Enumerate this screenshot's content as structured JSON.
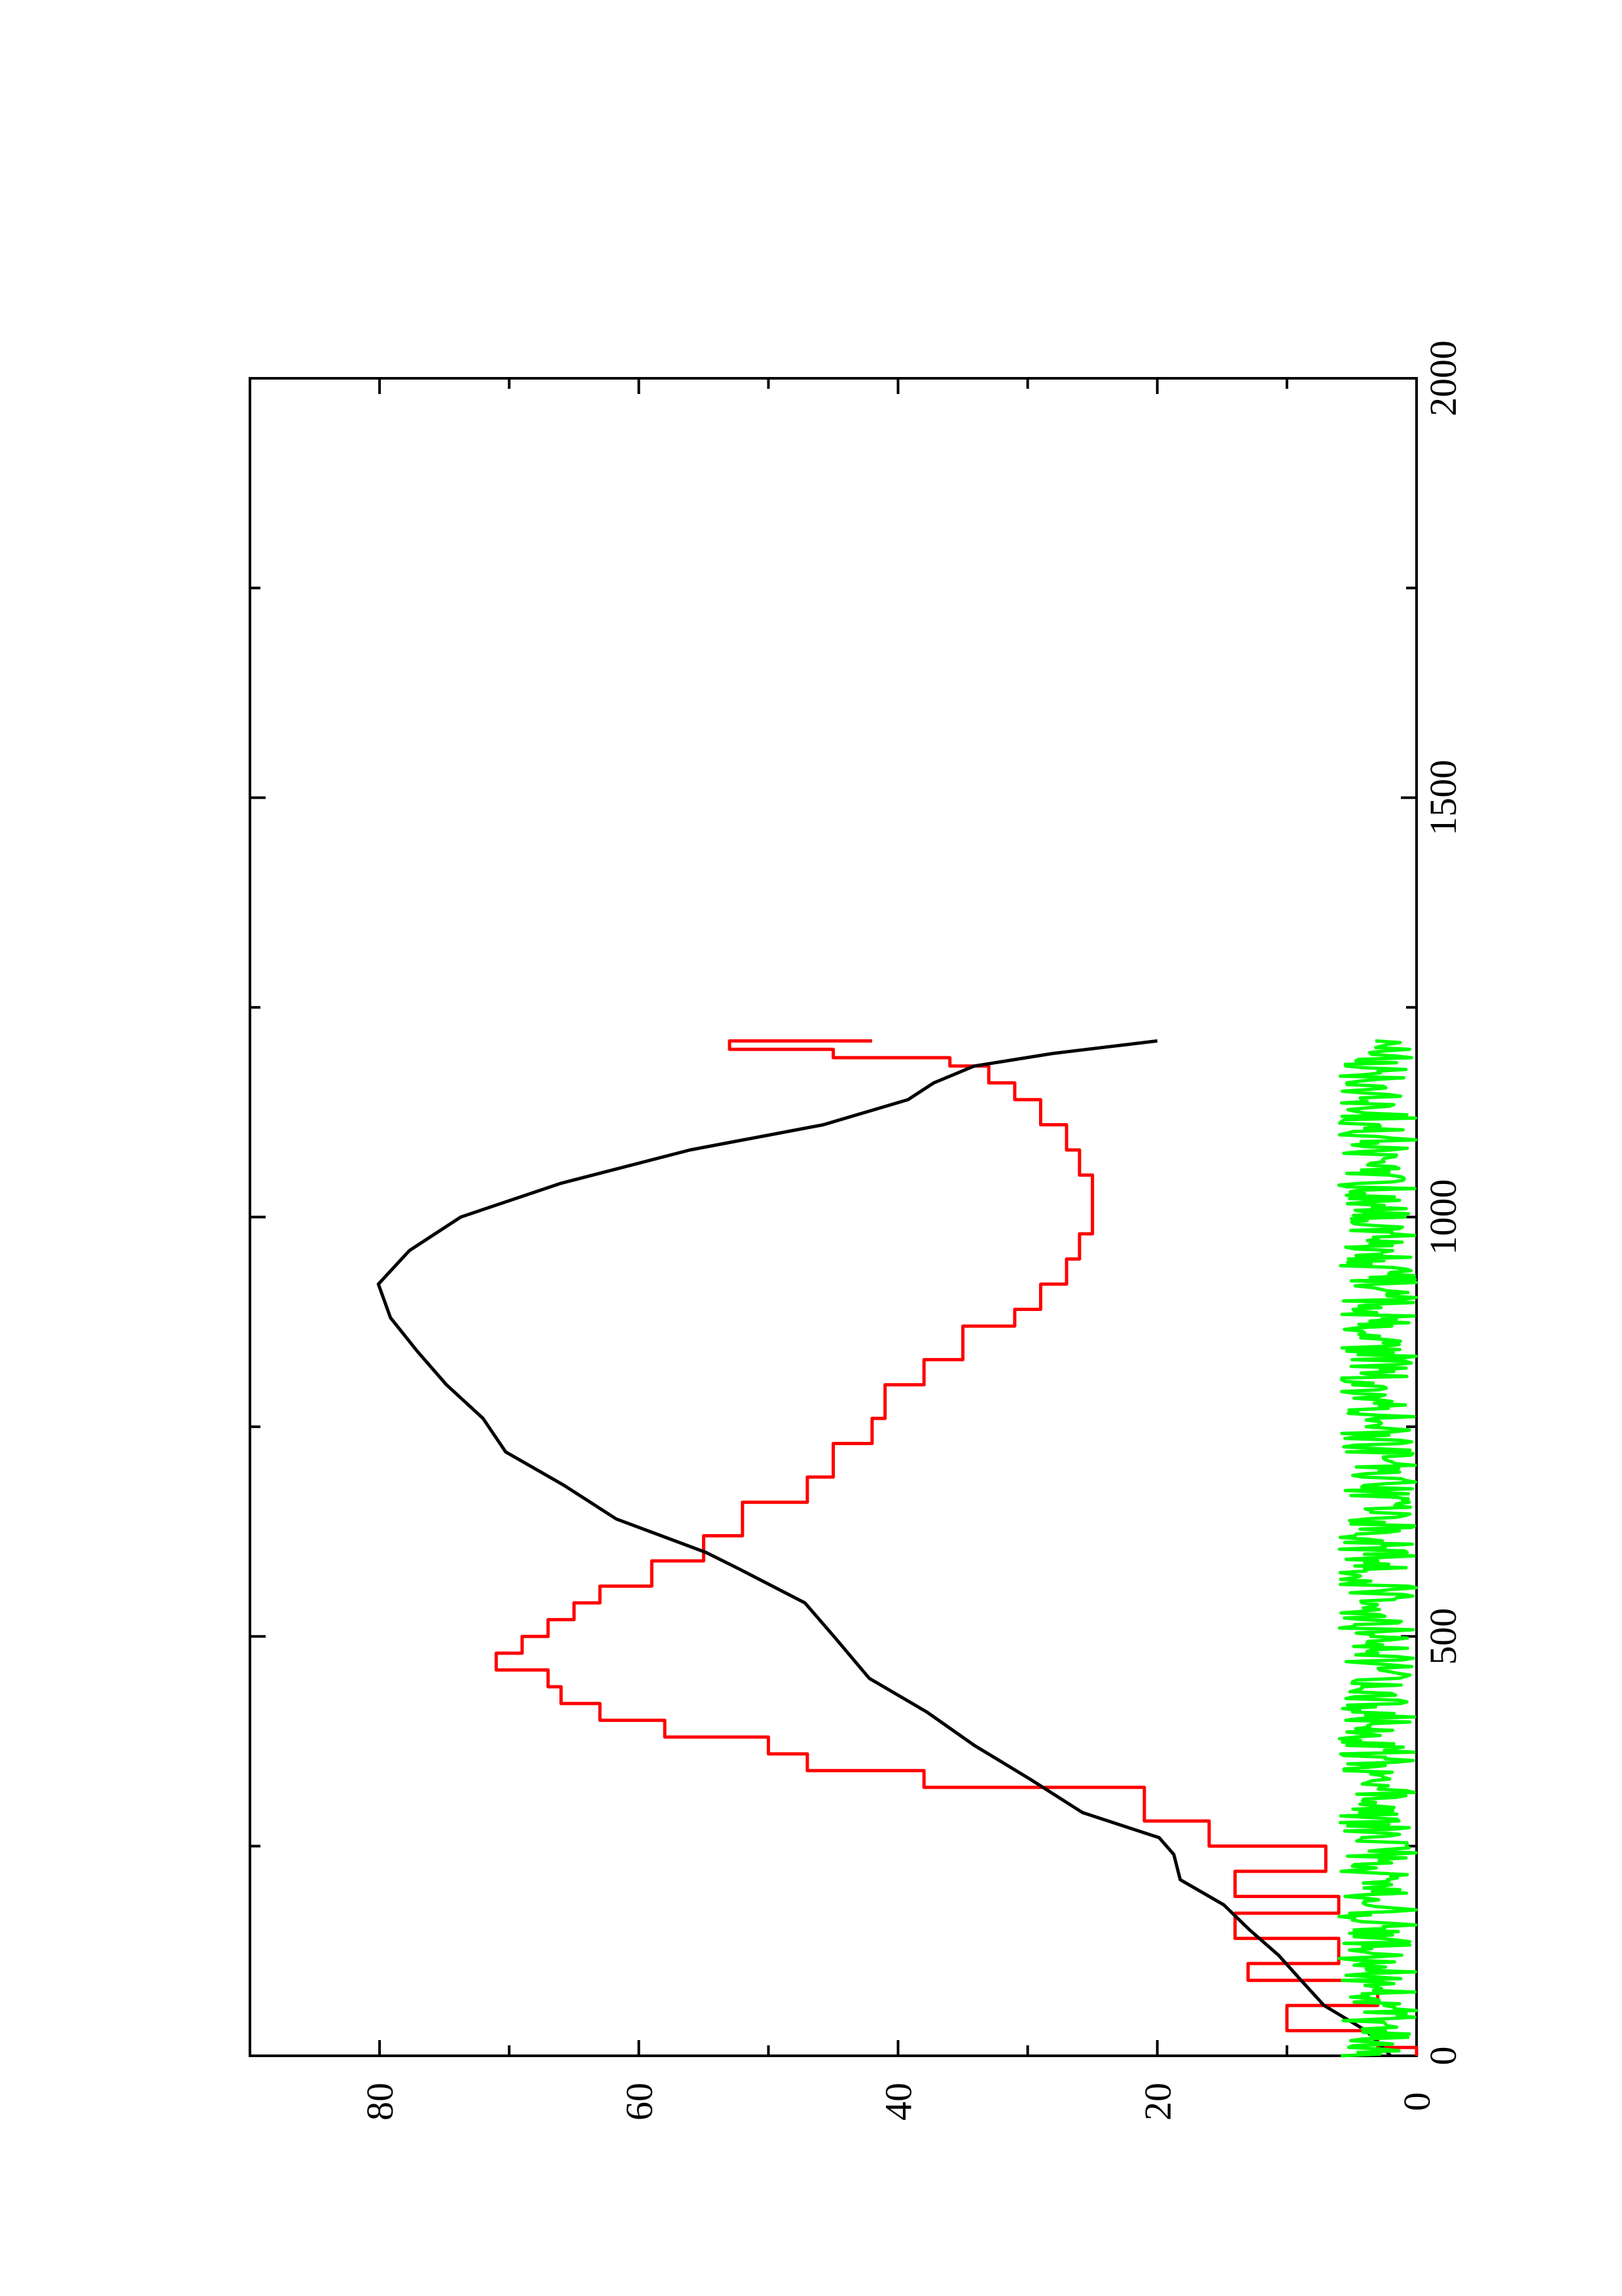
{
  "chart_data": {
    "type": "line",
    "orientation": "rotated-90-clockwise",
    "title": "",
    "xlabel": "",
    "ylabel": "",
    "xlim": [
      0,
      2000
    ],
    "ylim": [
      0,
      90
    ],
    "x_ticks": [
      0,
      500,
      1000,
      1500,
      2000
    ],
    "x_tick_labels": [
      "0",
      "500",
      "1000",
      "1500",
      "2000"
    ],
    "x_minor_ticks": [
      250,
      750,
      1250,
      1750
    ],
    "y_ticks": [
      0,
      20,
      40,
      60,
      80
    ],
    "y_tick_labels": [
      "0",
      "20",
      "40",
      "60",
      "80"
    ],
    "y_minor_ticks": [
      10,
      30,
      50,
      70,
      90
    ],
    "grid": false,
    "legend": "none",
    "series": [
      {
        "color": "#ff0000",
        "step": true,
        "points": [
          [
            0,
            0
          ],
          [
            10,
            3
          ],
          [
            30,
            10
          ],
          [
            60,
            3
          ],
          [
            90,
            13
          ],
          [
            110,
            6
          ],
          [
            140,
            14
          ],
          [
            170,
            6
          ],
          [
            190,
            14
          ],
          [
            220,
            7
          ],
          [
            250,
            16
          ],
          [
            280,
            21
          ],
          [
            320,
            38
          ],
          [
            340,
            47
          ],
          [
            360,
            50
          ],
          [
            380,
            58
          ],
          [
            400,
            63
          ],
          [
            420,
            66
          ],
          [
            440,
            67
          ],
          [
            460,
            71
          ],
          [
            480,
            69
          ],
          [
            500,
            67
          ],
          [
            520,
            65
          ],
          [
            540,
            63
          ],
          [
            560,
            59
          ],
          [
            590,
            55
          ],
          [
            620,
            52
          ],
          [
            660,
            47
          ],
          [
            690,
            45
          ],
          [
            730,
            42
          ],
          [
            760,
            41
          ],
          [
            800,
            38
          ],
          [
            830,
            35
          ],
          [
            870,
            31
          ],
          [
            890,
            29
          ],
          [
            920,
            27
          ],
          [
            950,
            26
          ],
          [
            980,
            25
          ],
          [
            1020,
            25
          ],
          [
            1050,
            26
          ],
          [
            1080,
            27
          ],
          [
            1110,
            29
          ],
          [
            1140,
            31
          ],
          [
            1160,
            33
          ],
          [
            1180,
            36
          ],
          [
            1190,
            45
          ],
          [
            1200,
            53
          ],
          [
            1210,
            42
          ]
        ]
      },
      {
        "color": "#000000",
        "step": false,
        "points": [
          [
            0,
            2
          ],
          [
            30,
            4
          ],
          [
            60,
            7
          ],
          [
            90,
            9
          ],
          [
            120,
            11
          ],
          [
            150,
            13
          ],
          [
            180,
            15
          ],
          [
            210,
            18
          ],
          [
            240,
            19
          ],
          [
            260,
            20
          ],
          [
            290,
            26
          ],
          [
            330,
            30
          ],
          [
            370,
            34
          ],
          [
            410,
            38
          ],
          [
            450,
            42
          ],
          [
            500,
            45
          ],
          [
            540,
            47
          ],
          [
            580,
            52
          ],
          [
            600,
            55
          ],
          [
            640,
            62
          ],
          [
            680,
            66
          ],
          [
            720,
            70
          ],
          [
            760,
            72
          ],
          [
            800,
            75
          ],
          [
            840,
            77
          ],
          [
            880,
            79
          ],
          [
            920,
            80
          ],
          [
            960,
            78
          ],
          [
            1000,
            74
          ],
          [
            1040,
            66
          ],
          [
            1080,
            56
          ],
          [
            1110,
            46
          ],
          [
            1140,
            39
          ],
          [
            1160,
            37
          ],
          [
            1180,
            34
          ],
          [
            1195,
            28
          ],
          [
            1210,
            20
          ]
        ]
      },
      {
        "color": "#00ff00",
        "step": false,
        "noise_band": [
          0,
          6
        ],
        "x_range": [
          0,
          1210
        ]
      }
    ]
  }
}
